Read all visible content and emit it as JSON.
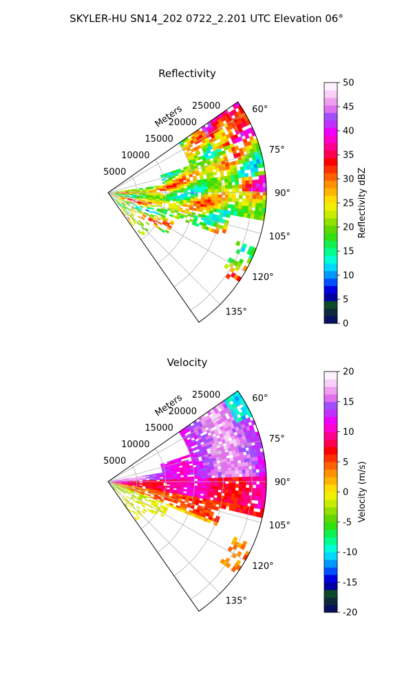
{
  "figure": {
    "title": "SKYLER-HU  SN14_202  0722_2.201 UTC Elevation 06°"
  },
  "chart_data": [
    {
      "type": "heatmap",
      "title": "Reflectivity",
      "radial_axis_label": "Meters",
      "range_ticks": [
        5000,
        10000,
        15000,
        20000,
        25000
      ],
      "range_max": 27500,
      "azimuth_range": [
        55,
        145
      ],
      "azimuth_ticks": [
        60,
        75,
        90,
        105,
        120,
        135
      ],
      "azimuth_tick_labels": [
        "60°",
        "75°",
        "90°",
        "105°",
        "120°",
        "135°"
      ],
      "grid": true,
      "colorbar": {
        "label": "Reflectivity dBZ",
        "range": [
          0,
          50
        ],
        "ticks": [
          0,
          5,
          10,
          15,
          20,
          25,
          30,
          35,
          40,
          45,
          50
        ],
        "colors": [
          "#081060",
          "#0c2a3a",
          "#0e4a28",
          "#0000a0",
          "#0000e0",
          "#0050ff",
          "#0098ff",
          "#00d8ff",
          "#00ffd8",
          "#00ff90",
          "#10f050",
          "#30e010",
          "#60d800",
          "#90e000",
          "#c8ec00",
          "#f0f000",
          "#ffdc00",
          "#ffb400",
          "#ff9000",
          "#ff6000",
          "#ff3000",
          "#ff0000",
          "#ff0050",
          "#ff0090",
          "#ff00d0",
          "#f000ff",
          "#c030ff",
          "#a050ff",
          "#e070f0",
          "#f0a0f0",
          "#f8d0f8",
          "#fff0ff"
        ]
      }
    },
    {
      "type": "heatmap",
      "title": "Velocity",
      "radial_axis_label": "Meters",
      "range_ticks": [
        5000,
        10000,
        15000,
        20000,
        25000
      ],
      "range_max": 27500,
      "azimuth_range": [
        55,
        145
      ],
      "azimuth_ticks": [
        60,
        75,
        90,
        105,
        120,
        135
      ],
      "azimuth_tick_labels": [
        "60°",
        "75°",
        "90°",
        "105°",
        "120°",
        "135°"
      ],
      "grid": true,
      "colorbar": {
        "label": "Velocity (m/s)",
        "range": [
          -20,
          20
        ],
        "ticks": [
          -20,
          -15,
          -10,
          -5,
          0,
          5,
          10,
          15,
          20
        ],
        "colors": [
          "#081060",
          "#0c2a3a",
          "#0e4a28",
          "#0000a0",
          "#0000e0",
          "#0050ff",
          "#0098ff",
          "#00d8ff",
          "#00ffd8",
          "#00ff90",
          "#10f050",
          "#30e010",
          "#60d800",
          "#90e000",
          "#c8ec00",
          "#f0f000",
          "#ffdc00",
          "#ffb400",
          "#ff9000",
          "#ff6000",
          "#ff3000",
          "#ff0000",
          "#ff0050",
          "#ff0090",
          "#ff00d0",
          "#f000ff",
          "#c030ff",
          "#a050ff",
          "#e070f0",
          "#f0a0f0",
          "#f8d0f8",
          "#fff0ff"
        ]
      }
    }
  ]
}
